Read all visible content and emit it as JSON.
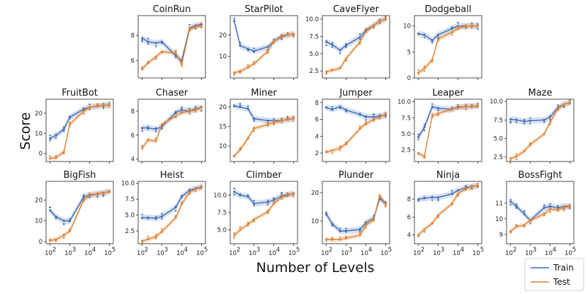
{
  "figure": {
    "ylabel": "Score",
    "xlabel": "Number of Levels",
    "x_tick_labels": [
      "10",
      "10",
      "10",
      "10"
    ],
    "x_tick_exponents": [
      "2",
      "3",
      "4",
      "5"
    ],
    "legend": [
      {
        "name": "Train",
        "color": "#3b6ab5"
      },
      {
        "name": "Test",
        "color": "#dd8033"
      }
    ]
  },
  "chart_data": [
    {
      "type": "line",
      "title": "CoinRun",
      "x_levels": [
        100,
        200,
        500,
        1000,
        5000,
        10000,
        25000,
        50000,
        100000
      ],
      "ylim": [
        4.6,
        9.6
      ],
      "yticks": [
        6,
        8
      ],
      "series": [
        {
          "name": "Train",
          "values": [
            7.8,
            7.5,
            7.4,
            7.5,
            6.4,
            6.0,
            8.6,
            8.8,
            8.9
          ]
        },
        {
          "name": "Test",
          "values": [
            5.3,
            5.8,
            6.3,
            6.7,
            6.6,
            5.7,
            8.5,
            8.7,
            8.8
          ]
        }
      ]
    },
    {
      "type": "line",
      "title": "StarPilot",
      "x_levels": [
        100,
        200,
        500,
        1000,
        5000,
        10000,
        25000,
        50000,
        100000
      ],
      "ylim": [
        0,
        29
      ],
      "yticks": [
        10,
        20
      ],
      "series": [
        {
          "name": "Train",
          "values": [
            26.5,
            15,
            13.5,
            12.5,
            14.5,
            17,
            19.5,
            20,
            20.5
          ]
        },
        {
          "name": "Test",
          "values": [
            2.5,
            3,
            5,
            6.5,
            12.5,
            17,
            19,
            20,
            20.5
          ]
        }
      ]
    },
    {
      "type": "line",
      "title": "CaveFlyer",
      "x_levels": [
        100,
        200,
        500,
        1000,
        5000,
        10000,
        25000,
        50000,
        100000
      ],
      "ylim": [
        1.5,
        10.5
      ],
      "yticks": [
        2.5,
        5.0,
        7.5,
        10.0
      ],
      "series": [
        {
          "name": "Train",
          "values": [
            6.7,
            6.3,
            5.5,
            6.2,
            7.4,
            8.4,
            9.1,
            9.7,
            10.0
          ]
        },
        {
          "name": "Test",
          "values": [
            2.4,
            2.6,
            2.9,
            4.3,
            6.7,
            8.2,
            9.1,
            9.7,
            10.0
          ]
        }
      ]
    },
    {
      "type": "line",
      "title": "Dodgeball",
      "x_levels": [
        100,
        200,
        500,
        1000,
        5000,
        10000,
        25000,
        50000,
        100000
      ],
      "ylim": [
        0,
        12
      ],
      "yticks": [
        0,
        5,
        10
      ],
      "series": [
        {
          "name": "Train",
          "values": [
            8.5,
            8.3,
            7.2,
            8.3,
            9.5,
            10,
            10,
            10,
            10
          ]
        },
        {
          "name": "Test",
          "values": [
            1,
            1.8,
            3.5,
            7.5,
            8.8,
            9.5,
            10,
            10,
            10
          ]
        }
      ]
    },
    {
      "type": "line",
      "title": "FruitBot",
      "x_levels": [
        100,
        200,
        500,
        1000,
        5000,
        10000,
        25000,
        50000,
        100000
      ],
      "ylim": [
        -4,
        27
      ],
      "yticks": [
        0,
        10,
        20
      ],
      "series": [
        {
          "name": "Train",
          "values": [
            7.5,
            9,
            12,
            18,
            22,
            23,
            23.5,
            24,
            24
          ]
        },
        {
          "name": "Test",
          "values": [
            -2.5,
            -2,
            0.8,
            14.5,
            21,
            23,
            23.5,
            24,
            24
          ]
        }
      ]
    },
    {
      "type": "line",
      "title": "Chaser",
      "x_levels": [
        100,
        200,
        500,
        1000,
        5000,
        10000,
        25000,
        50000,
        100000
      ],
      "ylim": [
        3.8,
        9.0
      ],
      "yticks": [
        4,
        6,
        8
      ],
      "series": [
        {
          "name": "Train",
          "values": [
            6.6,
            6.6,
            6.5,
            6.7,
            7.9,
            8.1,
            8.0,
            8.2,
            8.3
          ]
        },
        {
          "name": "Test",
          "values": [
            4.9,
            5.6,
            5.5,
            6.9,
            7.6,
            7.9,
            8.0,
            8.1,
            8.3
          ]
        }
      ]
    },
    {
      "type": "line",
      "title": "Miner",
      "x_levels": [
        100,
        200,
        500,
        1000,
        5000,
        10000,
        25000,
        50000,
        100000
      ],
      "ylim": [
        6,
        22
      ],
      "yticks": [
        10,
        15,
        20
      ],
      "series": [
        {
          "name": "Train",
          "values": [
            20.2,
            20,
            19.5,
            17,
            16.5,
            16.5,
            16.5,
            16.8,
            17
          ]
        },
        {
          "name": "Test",
          "values": [
            7.5,
            9,
            12,
            14.5,
            15.5,
            16,
            16.5,
            16.8,
            17
          ]
        }
      ]
    },
    {
      "type": "line",
      "title": "Jumper",
      "x_levels": [
        100,
        200,
        500,
        1000,
        5000,
        10000,
        25000,
        50000,
        100000
      ],
      "ylim": [
        1,
        8.4
      ],
      "yticks": [
        2,
        4,
        6,
        8
      ],
      "series": [
        {
          "name": "Train",
          "values": [
            7.4,
            7.2,
            7.5,
            7.1,
            6.6,
            6.3,
            6.3,
            6.4,
            6.5
          ]
        },
        {
          "name": "Test",
          "values": [
            2.1,
            2.3,
            2.6,
            3.1,
            4.9,
            5.5,
            6.0,
            6.3,
            6.6
          ]
        }
      ]
    },
    {
      "type": "line",
      "title": "Leaper",
      "x_levels": [
        100,
        200,
        500,
        1000,
        5000,
        10000,
        25000,
        50000,
        100000
      ],
      "ylim": [
        0.7,
        10.4
      ],
      "yticks": [
        2.5,
        5.0,
        7.5,
        10.0
      ],
      "series": [
        {
          "name": "Train",
          "values": [
            4.5,
            6,
            9.2,
            9.0,
            8.8,
            9.2,
            9.2,
            9.3,
            9.3
          ]
        },
        {
          "name": "Test",
          "values": [
            2,
            1.5,
            7.8,
            8.2,
            8.8,
            9.1,
            9.2,
            9.3,
            9.3
          ]
        }
      ]
    },
    {
      "type": "line",
      "title": "Maze",
      "x_levels": [
        100,
        200,
        500,
        1000,
        5000,
        10000,
        25000,
        50000,
        100000
      ],
      "ylim": [
        1.9,
        10.3
      ],
      "yticks": [
        2.5,
        5.0,
        7.5,
        10.0
      ],
      "series": [
        {
          "name": "Train",
          "values": [
            7.6,
            7.5,
            7.3,
            7.4,
            7.5,
            7.9,
            9.2,
            9.6,
            9.8
          ]
        },
        {
          "name": "Test",
          "values": [
            2.3,
            2.6,
            3.3,
            4.2,
            5.6,
            7.2,
            9.0,
            9.6,
            9.8
          ]
        }
      ]
    },
    {
      "type": "line",
      "title": "BigFish",
      "x_levels": [
        100,
        200,
        500,
        1000,
        5000,
        10000,
        25000,
        50000,
        100000
      ],
      "ylim": [
        -1,
        29
      ],
      "yticks": [
        0,
        10,
        20
      ],
      "series": [
        {
          "name": "Train",
          "values": [
            15,
            12,
            10,
            10,
            21.5,
            22.5,
            23,
            23.5,
            24
          ]
        },
        {
          "name": "Test",
          "values": [
            0.5,
            1,
            3,
            5,
            20,
            22,
            23,
            23.5,
            24
          ]
        }
      ]
    },
    {
      "type": "line",
      "title": "Heist",
      "x_levels": [
        100,
        200,
        500,
        1000,
        5000,
        10000,
        25000,
        50000,
        100000
      ],
      "ylim": [
        0.5,
        10.3
      ],
      "yticks": [
        2.5,
        5.0,
        7.5,
        10.0
      ],
      "series": [
        {
          "name": "Train",
          "values": [
            4.6,
            4.6,
            4.5,
            4.8,
            6.2,
            7.9,
            8.9,
            9.2,
            9.4
          ]
        },
        {
          "name": "Test",
          "values": [
            0.9,
            1.2,
            1.6,
            2.4,
            4.6,
            6.7,
            8.6,
            9.1,
            9.3
          ]
        }
      ]
    },
    {
      "type": "line",
      "title": "Climber",
      "x_levels": [
        100,
        200,
        500,
        1000,
        5000,
        10000,
        25000,
        50000,
        100000
      ],
      "ylim": [
        3,
        12
      ],
      "yticks": [
        5.0,
        7.5,
        10.0
      ],
      "series": [
        {
          "name": "Train",
          "values": [
            10.5,
            10.0,
            9.8,
            8.8,
            9.0,
            9.3,
            9.9,
            10.1,
            10.2
          ]
        },
        {
          "name": "Test",
          "values": [
            4.2,
            5.0,
            5.8,
            6.5,
            7.6,
            8.8,
            9.7,
            10.0,
            10.2
          ]
        }
      ]
    },
    {
      "type": "line",
      "title": "Plunder",
      "x_levels": [
        100,
        200,
        500,
        1000,
        5000,
        10000,
        25000,
        50000,
        100000
      ],
      "ylim": [
        2,
        24
      ],
      "yticks": [
        10,
        20
      ],
      "series": [
        {
          "name": "Train",
          "values": [
            12.5,
            9,
            6.5,
            6.5,
            7,
            9.5,
            11,
            18,
            16
          ]
        },
        {
          "name": "Test",
          "values": [
            3.5,
            3.5,
            3.5,
            4,
            5,
            8.5,
            10.5,
            19,
            16
          ]
        }
      ]
    },
    {
      "type": "line",
      "title": "Ninja",
      "x_levels": [
        100,
        200,
        500,
        1000,
        5000,
        10000,
        25000,
        50000,
        100000
      ],
      "ylim": [
        3,
        10
      ],
      "yticks": [
        4,
        6,
        8
      ],
      "series": [
        {
          "name": "Train",
          "values": [
            8.0,
            8.1,
            8.2,
            8.2,
            8.6,
            9.0,
            9.3,
            9.4,
            9.5
          ]
        },
        {
          "name": "Test",
          "values": [
            4.0,
            4.6,
            5.3,
            6.2,
            7.5,
            8.6,
            9.2,
            9.4,
            9.5
          ]
        }
      ]
    },
    {
      "type": "line",
      "title": "BossFight",
      "x_levels": [
        100,
        200,
        500,
        1000,
        5000,
        10000,
        25000,
        50000,
        100000
      ],
      "ylim": [
        8.4,
        12.4
      ],
      "yticks": [
        9,
        10,
        11
      ],
      "series": [
        {
          "name": "Train",
          "values": [
            11.1,
            10.8,
            10.3,
            9.9,
            10.7,
            10.8,
            10.7,
            10.8,
            10.8
          ]
        },
        {
          "name": "Test",
          "values": [
            9.2,
            9.5,
            9.6,
            9.9,
            10.3,
            10.6,
            10.6,
            10.7,
            10.8
          ]
        }
      ]
    }
  ]
}
